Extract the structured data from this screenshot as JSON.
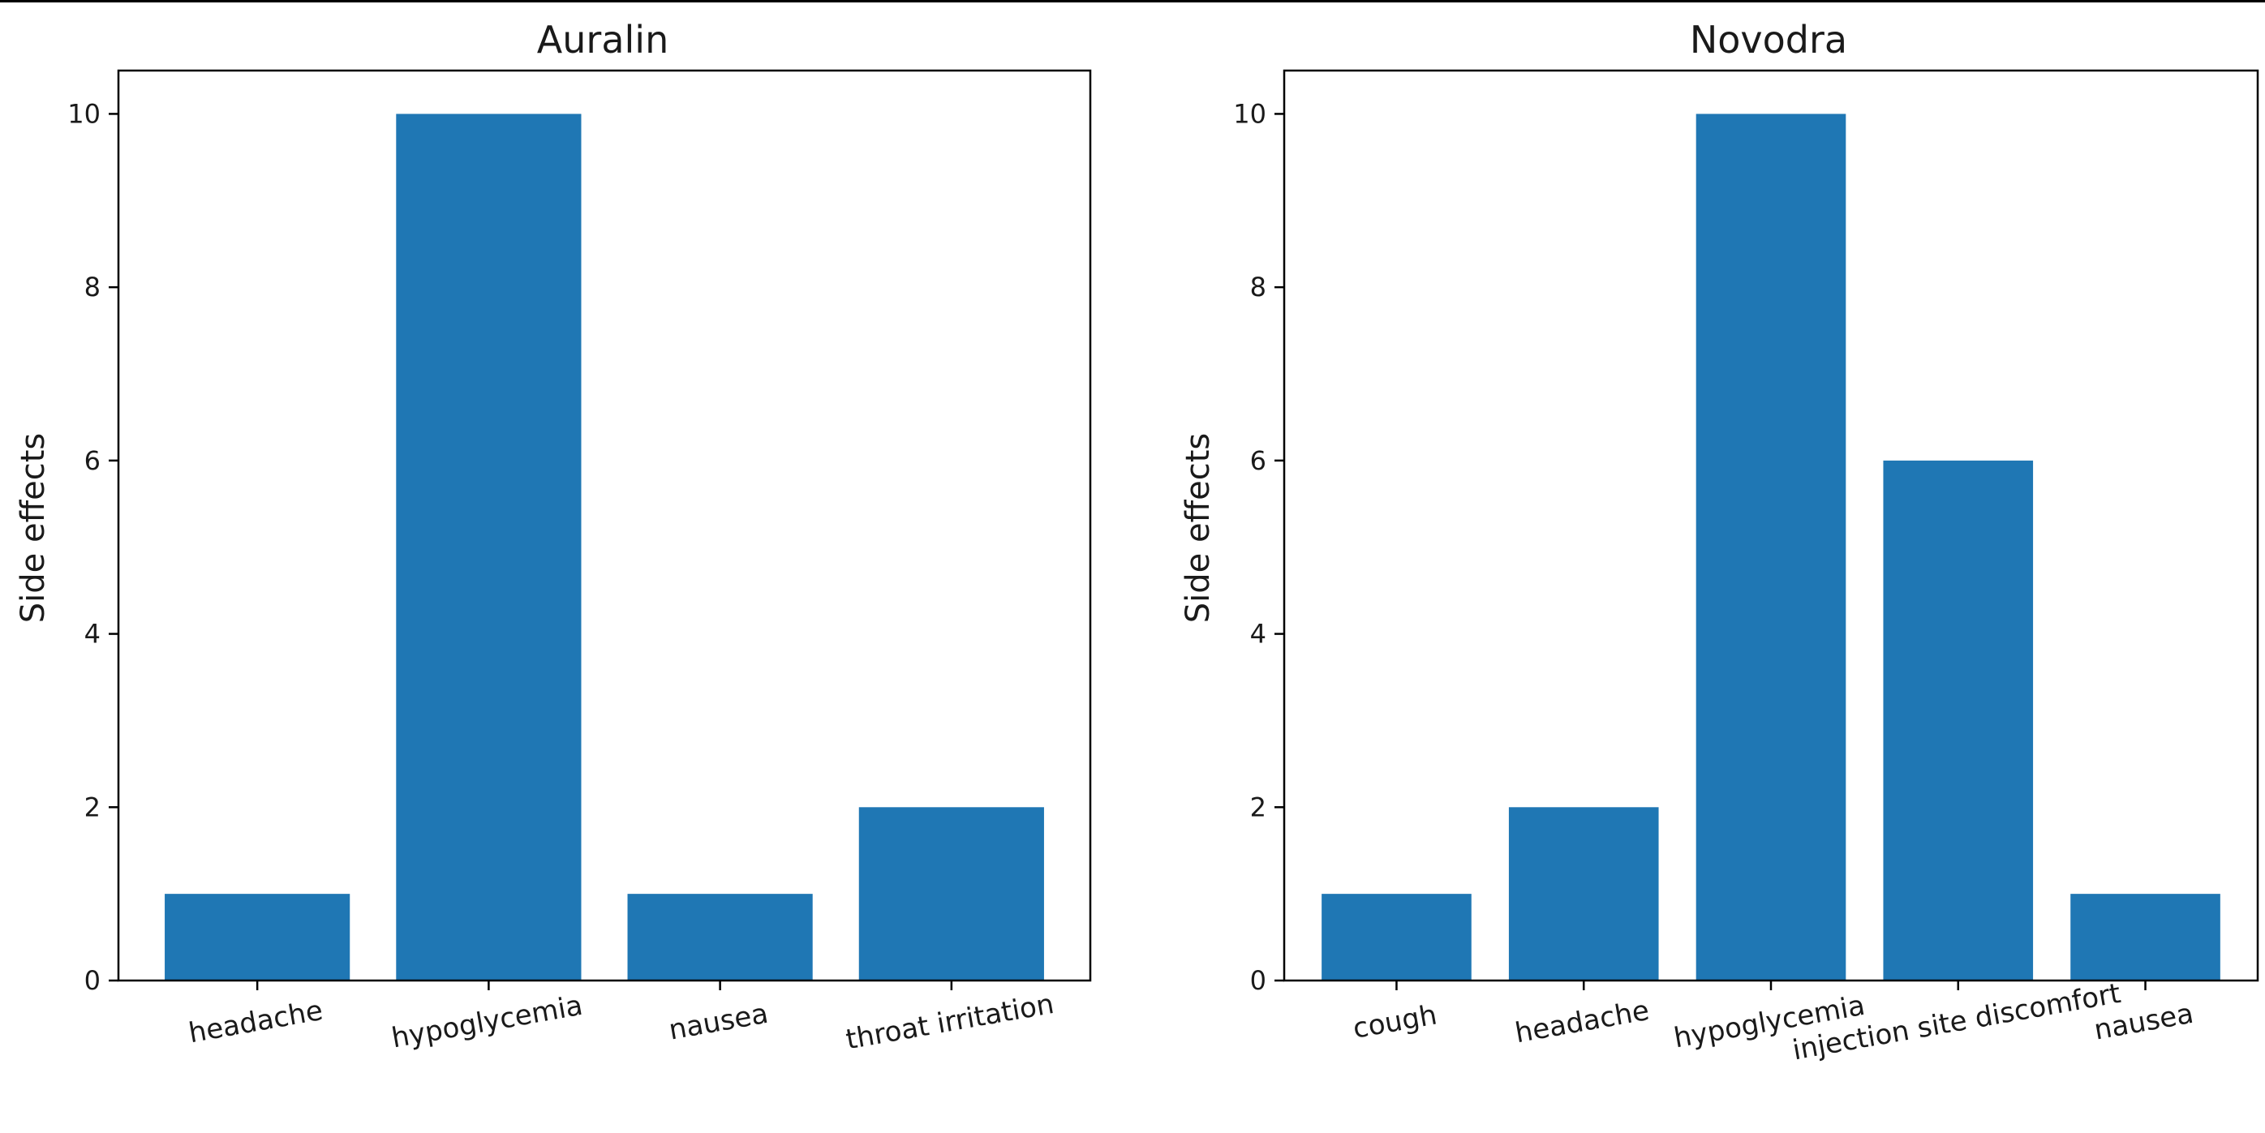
{
  "chart_data": [
    {
      "type": "bar",
      "title": "Auralin",
      "xlabel": "",
      "ylabel": "Side effects",
      "categories": [
        "headache",
        "hypoglycemia",
        "nausea",
        "throat irritation"
      ],
      "values": [
        1,
        10,
        1,
        2
      ],
      "ylim": [
        0,
        10.5
      ],
      "yticks": [
        "0",
        "2",
        "4",
        "6",
        "8",
        "10"
      ],
      "bar_color": "#1f77b4",
      "grid": false
    },
    {
      "type": "bar",
      "title": "Novodra",
      "xlabel": "",
      "ylabel": "Side effects",
      "categories": [
        "cough",
        "headache",
        "hypoglycemia",
        "injection site discomfort",
        "nausea"
      ],
      "values": [
        1,
        2,
        10,
        6,
        1
      ],
      "ylim": [
        0,
        10.5
      ],
      "yticks": [
        "0",
        "2",
        "4",
        "6",
        "8",
        "10"
      ],
      "bar_color": "#1f77b4",
      "grid": false
    }
  ]
}
